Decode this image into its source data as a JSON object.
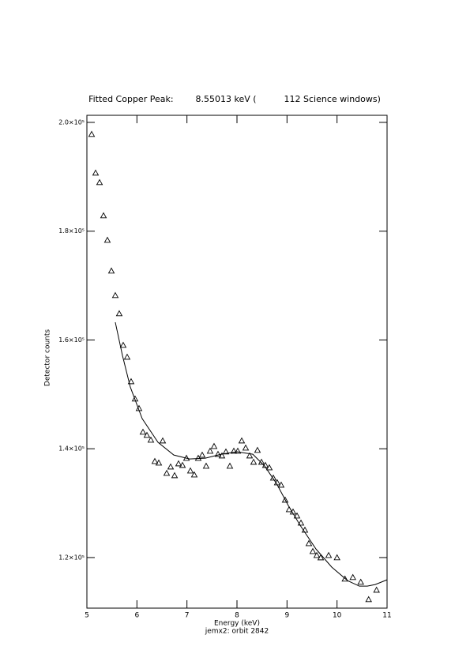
{
  "chart_data": {
    "type": "scatter",
    "title": "Fitted Copper Peak:        8.55013 keV (          112 Science windows)",
    "x_label": "Energy (keV)",
    "subtitle": "jemx2: orbit 2842",
    "y_label": "Detector counts",
    "xlim": [
      5,
      11
    ],
    "ylim": [
      110700,
      201300
    ],
    "xticks": [
      5,
      6,
      7,
      8,
      9,
      10,
      11
    ],
    "yticks": [
      {
        "value": 120000,
        "label": "1.2×10⁵"
      },
      {
        "value": 140000,
        "label": "1.4×10⁵"
      },
      {
        "value": 160000,
        "label": "1.6×10⁵"
      },
      {
        "value": 180000,
        "label": "1.8×10⁵"
      },
      {
        "value": 200000,
        "label": "2.0×10⁵"
      }
    ],
    "series": [
      {
        "type": "scatter",
        "marker": "triangle",
        "color": "#000000",
        "x": [
          5.095,
          5.174,
          5.253,
          5.332,
          5.41,
          5.49,
          5.568,
          5.647,
          5.726,
          5.805,
          5.884,
          5.963,
          6.042,
          6.121,
          6.2,
          6.279,
          6.358,
          6.437,
          6.516,
          6.595,
          6.674,
          6.753,
          6.832,
          6.911,
          6.99,
          7.069,
          7.147,
          7.226,
          7.305,
          7.384,
          7.463,
          7.542,
          7.621,
          7.7,
          7.779,
          7.858,
          7.937,
          8.016,
          8.095,
          8.174,
          8.253,
          8.332,
          8.41,
          8.49,
          8.568,
          8.647,
          8.726,
          8.805,
          8.884,
          8.963,
          9.042,
          9.121,
          9.2,
          9.279,
          9.358,
          9.437,
          9.516,
          9.595,
          9.674,
          9.832,
          10.0,
          10.158,
          10.316,
          10.474,
          10.632,
          10.79
        ],
        "values": [
          197820,
          190710,
          188960,
          182860,
          178360,
          172700,
          168190,
          164850,
          159040,
          156860,
          152360,
          149170,
          147420,
          143070,
          142490,
          141610,
          137690,
          137400,
          141470,
          135510,
          136680,
          135080,
          137260,
          136970,
          138270,
          135950,
          135220,
          138270,
          138850,
          136820,
          139580,
          140450,
          139000,
          138710,
          139440,
          136820,
          139580,
          139580,
          141470,
          140160,
          138710,
          137550,
          139730,
          137550,
          136970,
          136530,
          134640,
          133770,
          133340,
          130580,
          128830,
          128400,
          127670,
          126360,
          125060,
          122590,
          121140,
          120410,
          119980,
          120410,
          119990,
          116070,
          116360,
          115490,
          112290,
          114030
        ]
      },
      {
        "type": "line",
        "color": "#000000",
        "x": [
          5.568,
          5.711,
          5.868,
          6.105,
          6.421,
          6.737,
          7.053,
          7.368,
          7.684,
          8.0,
          8.316,
          8.553,
          8.789,
          9.026,
          9.263,
          9.579,
          9.895,
          10.211,
          10.447,
          10.605,
          10.763,
          11.0
        ],
        "values": [
          163250,
          157150,
          151340,
          145540,
          141180,
          138850,
          138130,
          138270,
          139000,
          139440,
          139000,
          136820,
          133630,
          129560,
          125930,
          121570,
          118230,
          115760,
          114740,
          114740,
          115040,
          115910
        ]
      }
    ]
  }
}
